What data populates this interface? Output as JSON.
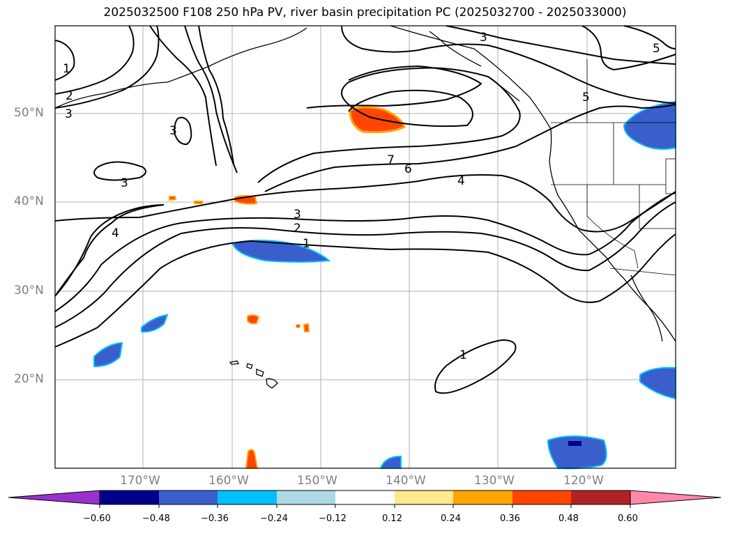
{
  "title": "2025032500 F108 250 hPa PV, river basin precipitation PC (2025032700 - 2025033000)",
  "lat_labels": [
    "50°N",
    "40°N",
    "30°N",
    "20°N"
  ],
  "lon_labels": [
    "170°W",
    "160°W",
    "150°W",
    "140°W",
    "130°W",
    "120°W"
  ],
  "contour_labels": [
    "1",
    "2",
    "3",
    "3",
    "3",
    "4",
    "4",
    "5",
    "5",
    "6",
    "7",
    "3",
    "2",
    "1",
    "1",
    "3"
  ],
  "colorbar": {
    "ticks": [
      "−0.60",
      "−0.48",
      "−0.36",
      "−0.24",
      "−0.12",
      "0.12",
      "0.24",
      "0.36",
      "0.48",
      "0.60"
    ],
    "colors": {
      "under": "#9932cc",
      "bins": [
        "#00008b",
        "#3a5fcd",
        "#00bfff",
        "#add8e6",
        "#ffffff",
        "#ffe98a",
        "#ffa500",
        "#ff4500",
        "#b22222",
        "#ff88aa"
      ],
      "over": "#ff88aa"
    }
  },
  "map_colors": {
    "positive": "#ff4500",
    "positive_edge": "#ffa500",
    "negative": "#3a5fcd",
    "negative_edge": "#00bfff",
    "negative_core": "#00008b"
  }
}
